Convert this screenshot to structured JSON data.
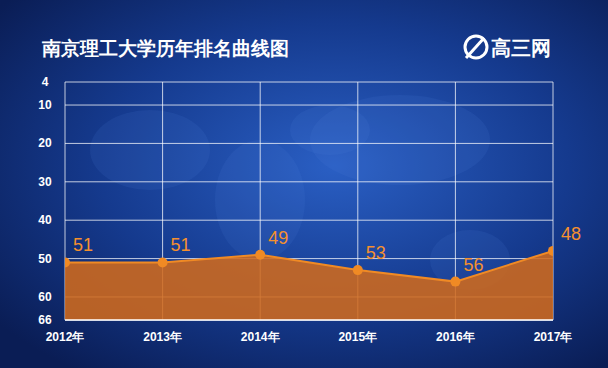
{
  "chart_data": {
    "type": "line",
    "title": "南京理工大学历年排名曲线图",
    "annotations": [
      "高三网"
    ],
    "categories": [
      "2012年",
      "2013年",
      "2014年",
      "2015年",
      "2016年",
      "2017年"
    ],
    "values": [
      51,
      51,
      49,
      53,
      56,
      48
    ],
    "color": "#f08a24",
    "ylim": [
      66,
      4
    ],
    "yticks": [
      4,
      10,
      20,
      30,
      40,
      50,
      60,
      66
    ],
    "grid": true,
    "data_labels": true,
    "marker": "circle"
  }
}
